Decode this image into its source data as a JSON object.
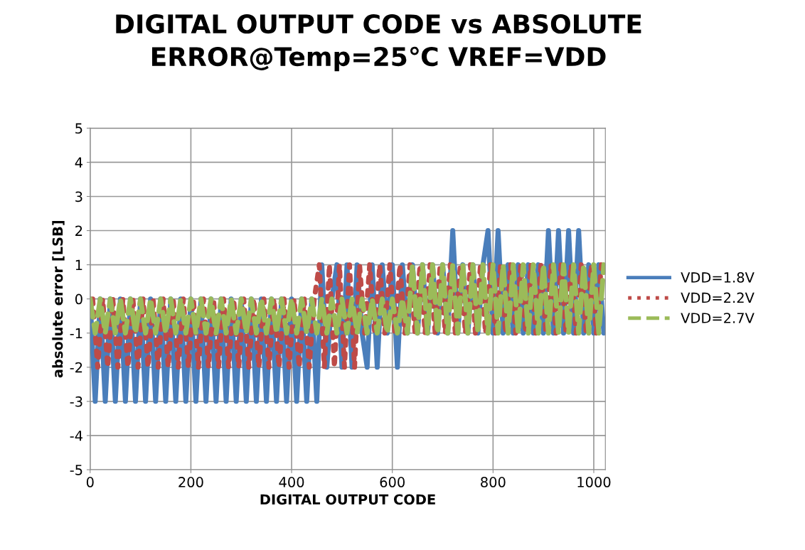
{
  "chart_data": {
    "type": "line",
    "title": "DIGITAL OUTPUT CODE vs ABSOLUTE\nERROR@Temp=25℃ VREF=VDD",
    "xlabel": "DIGITAL OUTPUT CODE",
    "ylabel": "absolute error [LSB]",
    "xlim": [
      0,
      1023
    ],
    "xticks": [
      0,
      200,
      400,
      600,
      800,
      1000
    ],
    "ylim": [
      -5,
      5
    ],
    "yticks": [
      -5,
      -4,
      -3,
      -2,
      -1,
      0,
      1,
      2,
      3,
      4,
      5
    ],
    "grid": true,
    "legend": "right",
    "series": [
      {
        "name": "VDD=1.8V",
        "color": "#4a7ebb",
        "line_style": "solid",
        "x": [
          0,
          10,
          20,
          30,
          40,
          50,
          60,
          70,
          80,
          90,
          100,
          110,
          120,
          130,
          140,
          150,
          160,
          170,
          180,
          190,
          200,
          210,
          220,
          230,
          240,
          250,
          260,
          270,
          280,
          290,
          300,
          310,
          320,
          330,
          340,
          350,
          360,
          370,
          380,
          390,
          400,
          410,
          420,
          430,
          440,
          450,
          460,
          470,
          480,
          490,
          500,
          510,
          520,
          530,
          540,
          550,
          560,
          570,
          580,
          590,
          600,
          610,
          620,
          630,
          640,
          650,
          660,
          670,
          680,
          690,
          700,
          710,
          720,
          730,
          740,
          750,
          760,
          770,
          780,
          790,
          800,
          810,
          820,
          830,
          840,
          850,
          860,
          870,
          880,
          890,
          900,
          910,
          920,
          930,
          940,
          950,
          960,
          970,
          980,
          990,
          1000,
          1010,
          1020
        ],
        "values": [
          0,
          -3,
          0,
          -3,
          0,
          -3,
          0,
          -3,
          0,
          -3,
          0,
          -3,
          0,
          -3,
          0,
          -3,
          0,
          -3,
          0,
          -3,
          0,
          -3,
          0,
          -3,
          0,
          -3,
          0,
          -3,
          0,
          -3,
          0,
          -3,
          0,
          -3,
          0,
          -3,
          0,
          -3,
          0,
          -3,
          0,
          -3,
          0,
          -3,
          0,
          -3,
          1,
          -2,
          0,
          1,
          -2,
          1,
          -2,
          1,
          -1,
          -2,
          1,
          -2,
          1,
          -1,
          1,
          -2,
          1,
          -1,
          1,
          -1,
          1,
          -1,
          1,
          -1,
          1,
          -1,
          2,
          -1,
          1,
          -1,
          1,
          -1,
          1,
          2,
          -1,
          2,
          -1,
          1,
          -1,
          1,
          -1,
          1,
          -1,
          1,
          -1,
          2,
          -1,
          2,
          -1,
          2,
          -1,
          2,
          -1,
          1,
          -1,
          1,
          -1
        ]
      },
      {
        "name": "VDD=2.2V",
        "color": "#be4b48",
        "line_style": "dotted",
        "x": [
          5,
          15,
          25,
          35,
          45,
          55,
          65,
          75,
          85,
          95,
          105,
          115,
          125,
          135,
          145,
          155,
          165,
          175,
          185,
          195,
          205,
          215,
          225,
          235,
          245,
          255,
          265,
          275,
          285,
          295,
          305,
          315,
          325,
          335,
          345,
          355,
          365,
          375,
          385,
          395,
          405,
          415,
          425,
          435,
          445,
          455,
          465,
          475,
          485,
          495,
          505,
          515,
          525,
          535,
          545,
          555,
          565,
          575,
          585,
          595,
          605,
          615,
          625,
          635,
          645,
          655,
          665,
          675,
          685,
          695,
          705,
          715,
          725,
          735,
          745,
          755,
          765,
          775,
          785,
          795,
          805,
          815,
          825,
          835,
          845,
          855,
          865,
          875,
          885,
          895,
          905,
          915,
          925,
          935,
          945,
          955,
          965,
          975,
          985,
          995,
          1005,
          1015
        ],
        "values": [
          0,
          -2,
          0,
          -2,
          0,
          -2,
          0,
          -2,
          0,
          -2,
          0,
          -2,
          0,
          -2,
          0,
          -2,
          0,
          -2,
          0,
          -2,
          0,
          -2,
          0,
          -2,
          0,
          -2,
          0,
          -2,
          0,
          -2,
          0,
          -2,
          0,
          -2,
          0,
          -2,
          0,
          -2,
          0,
          -2,
          0,
          -2,
          0,
          -2,
          0,
          1,
          -2,
          1,
          -2,
          1,
          -2,
          1,
          -2,
          1,
          -1,
          1,
          -1,
          1,
          -1,
          1,
          -1,
          1,
          -1,
          1,
          -1,
          1,
          -1,
          1,
          -1,
          1,
          -1,
          1,
          -1,
          1,
          -1,
          1,
          -1,
          1,
          -1,
          1,
          -1,
          1,
          -1,
          1,
          -1,
          1,
          -1,
          1,
          -1,
          1,
          -1,
          1,
          -1,
          1,
          -1,
          1,
          -1,
          1,
          -1,
          1,
          -1,
          1
        ]
      },
      {
        "name": "VDD=2.7V",
        "color": "#9bbb59",
        "line_style": "dashed",
        "x": [
          0,
          10,
          20,
          30,
          40,
          50,
          60,
          70,
          80,
          90,
          100,
          110,
          120,
          130,
          140,
          150,
          160,
          170,
          180,
          190,
          200,
          210,
          220,
          230,
          240,
          250,
          260,
          270,
          280,
          290,
          300,
          310,
          320,
          330,
          340,
          350,
          360,
          370,
          380,
          390,
          400,
          410,
          420,
          430,
          440,
          450,
          460,
          470,
          480,
          490,
          500,
          510,
          520,
          530,
          540,
          550,
          560,
          570,
          580,
          590,
          600,
          610,
          620,
          630,
          640,
          650,
          660,
          670,
          680,
          690,
          700,
          710,
          720,
          730,
          740,
          750,
          760,
          770,
          780,
          790,
          800,
          810,
          820,
          830,
          840,
          850,
          860,
          870,
          880,
          890,
          900,
          910,
          920,
          930,
          940,
          950,
          960,
          970,
          980,
          990,
          1000,
          1010,
          1020
        ],
        "values": [
          0,
          -1,
          0,
          -1,
          0,
          -1,
          0,
          -1,
          0,
          -1,
          0,
          -1,
          0,
          -1,
          0,
          -1,
          0,
          -1,
          0,
          -1,
          0,
          -1,
          0,
          -1,
          0,
          -1,
          0,
          -1,
          0,
          -1,
          0,
          -1,
          0,
          -1,
          0,
          -1,
          0,
          -1,
          0,
          -1,
          0,
          -1,
          0,
          -1,
          0,
          -1,
          0,
          -1,
          0,
          -1,
          0,
          -1,
          0,
          -1,
          0,
          -1,
          0,
          -1,
          0,
          -1,
          0,
          -1,
          0,
          -1,
          1,
          -1,
          1,
          -1,
          1,
          -1,
          1,
          -1,
          1,
          -1,
          1,
          -1,
          1,
          -1,
          1,
          -1,
          1,
          -1,
          1,
          -1,
          1,
          -1,
          1,
          -1,
          1,
          -1,
          1,
          -1,
          1,
          -1,
          1,
          -1,
          1,
          -1,
          1,
          -1,
          1,
          -1,
          1
        ]
      }
    ]
  }
}
